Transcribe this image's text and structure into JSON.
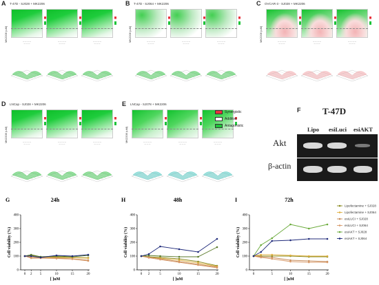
{
  "panels": [
    {
      "letter": "A",
      "title": "T-47D - SJ028 + MK2206",
      "style": "green"
    },
    {
      "letter": "B",
      "title": "T-47D - SJ064 + MK2206",
      "style": "greenwhite"
    },
    {
      "letter": "C",
      "title": "OVCAR-3 - SJ028 + MK2206",
      "style": "red"
    },
    {
      "letter": "D",
      "title": "LNCap - SJ028 + MK2206",
      "style": "green"
    },
    {
      "letter": "E",
      "title": "LNCap - SJ078 + MK2206",
      "style": "green2"
    }
  ],
  "heat_ylabel": "MK2206 (uM)",
  "synergy_legend": [
    {
      "label": "Synergistic",
      "color": "#e8323c"
    },
    {
      "label": "Additive",
      "color": "#ffffff"
    },
    {
      "label": "Antagonistic",
      "color": "#1ec43a"
    }
  ],
  "blot": {
    "letter": "F",
    "title": "T-47D",
    "lanes": [
      "Lipo",
      "esiLuci",
      "esiAKT"
    ],
    "rows": [
      "Akt",
      "β-actin"
    ],
    "band_intensity": {
      "Akt": [
        1.0,
        1.0,
        0.35
      ],
      "β-actin": [
        1.0,
        1.0,
        1.0
      ]
    }
  },
  "chart_data": [
    {
      "type": "line",
      "letter": "G",
      "title": "24h",
      "xlabel": "[ ]uM",
      "ylabel": "Cell viability (%)",
      "x": [
        0,
        2,
        5,
        10,
        15,
        20
      ],
      "xticks": [
        0,
        2,
        5,
        10,
        15,
        20
      ],
      "ylim": [
        0,
        400
      ],
      "yticks": [
        0,
        100,
        200,
        300,
        400
      ],
      "series": [
        {
          "name": "Lipofectamine + SJ028",
          "color": "#8a8a1e",
          "values": [
            100,
            105,
            95,
            95,
            90,
            88
          ]
        },
        {
          "name": "Lipofectamine + SJ064",
          "color": "#e0b040",
          "values": [
            100,
            98,
            92,
            90,
            88,
            85
          ]
        },
        {
          "name": "esiLUCI + SJ028",
          "color": "#c68b5a",
          "values": [
            100,
            90,
            88,
            86,
            80,
            70
          ]
        },
        {
          "name": "esiLUCI + SJ064",
          "color": "#d89a6a",
          "values": [
            100,
            85,
            85,
            82,
            78,
            65
          ]
        },
        {
          "name": "esiAKT + SJ028",
          "color": "#5a7a2a",
          "values": [
            100,
            110,
            95,
            100,
            95,
            105
          ]
        },
        {
          "name": "esiAKT + SJ064",
          "color": "#1f2a7a",
          "values": [
            100,
            100,
            90,
            105,
            100,
            110
          ]
        }
      ]
    },
    {
      "type": "line",
      "letter": "H",
      "title": "48h",
      "xlabel": "[ ]uM",
      "ylabel": "Cell viability (%)",
      "x": [
        0,
        2,
        5,
        10,
        15,
        20
      ],
      "xticks": [
        0,
        2,
        5,
        10,
        15,
        20
      ],
      "ylim": [
        0,
        400
      ],
      "yticks": [
        0,
        100,
        200,
        300,
        400
      ],
      "series": [
        {
          "name": "Lipofectamine + SJ028",
          "color": "#8a8a1e",
          "values": [
            100,
            95,
            90,
            80,
            60,
            30
          ]
        },
        {
          "name": "Lipofectamine + SJ064",
          "color": "#e0b040",
          "values": [
            100,
            90,
            85,
            70,
            50,
            25
          ]
        },
        {
          "name": "esiLUCI + SJ028",
          "color": "#c68b5a",
          "values": [
            100,
            92,
            80,
            60,
            40,
            20
          ]
        },
        {
          "name": "esiLUCI + SJ064",
          "color": "#d89a6a",
          "values": [
            100,
            88,
            75,
            55,
            35,
            15
          ]
        },
        {
          "name": "esiAKT + SJ028",
          "color": "#5a7a2a",
          "values": [
            100,
            105,
            100,
            95,
            95,
            165
          ]
        },
        {
          "name": "esiAKT + SJ064",
          "color": "#1f2a7a",
          "values": [
            100,
            115,
            170,
            150,
            130,
            225
          ]
        }
      ]
    },
    {
      "type": "line",
      "letter": "I",
      "title": "72h",
      "xlabel": "[ ]uM",
      "ylabel": "Cell viability (%)",
      "x": [
        0,
        2,
        5,
        10,
        15,
        20
      ],
      "xticks": [
        0,
        5,
        10,
        15,
        20
      ],
      "ylim": [
        0,
        400
      ],
      "yticks": [
        0,
        100,
        200,
        300,
        400
      ],
      "series": [
        {
          "name": "Lipofectamine + SJ028",
          "color": "#8a8a1e",
          "values": [
            100,
            100,
            100,
            100,
            95,
            95
          ]
        },
        {
          "name": "Lipofectamine + SJ064",
          "color": "#e0b040",
          "values": [
            100,
            110,
            110,
            105,
            100,
            100
          ]
        },
        {
          "name": "esiLUCI + SJ028",
          "color": "#c68b5a",
          "values": [
            100,
            95,
            90,
            70,
            65,
            60
          ]
        },
        {
          "name": "esiLUCI + SJ064",
          "color": "#d89a6a",
          "values": [
            100,
            90,
            80,
            60,
            55,
            55
          ]
        },
        {
          "name": "esiAKT + SJ028",
          "color": "#6aaa3a",
          "values": [
            100,
            180,
            230,
            330,
            300,
            330
          ]
        },
        {
          "name": "esiAKT + SJ064",
          "color": "#1f2a7a",
          "values": [
            100,
            130,
            210,
            215,
            225,
            225
          ]
        }
      ]
    }
  ]
}
